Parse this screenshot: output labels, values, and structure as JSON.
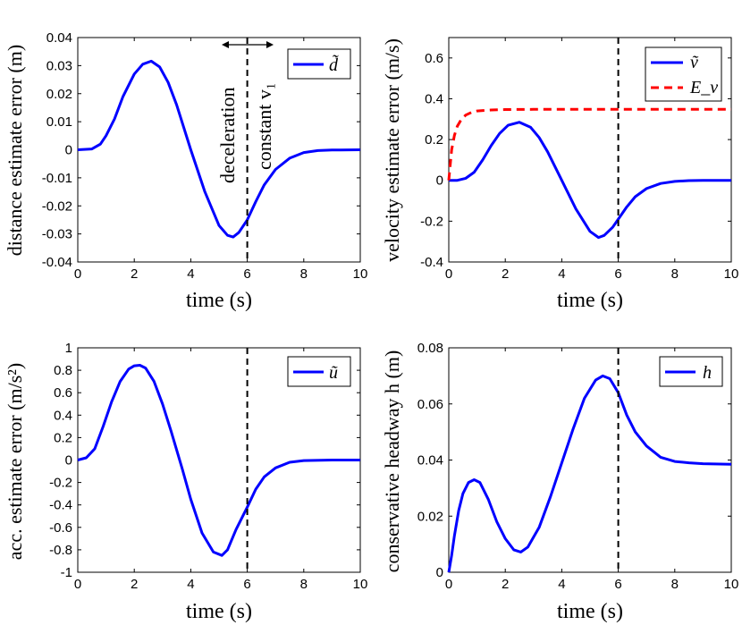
{
  "chart_data": [
    {
      "id": "p1",
      "type": "line",
      "xlabel": "time (s)",
      "ylabel": "distance estimate error (m)",
      "xlim": [
        0,
        10
      ],
      "ylim": [
        -0.04,
        0.04
      ],
      "xticks": [
        "0",
        "2",
        "4",
        "6",
        "8",
        "10"
      ],
      "yticks": [
        "-0.04",
        "-0.03",
        "-0.02",
        "-0.01",
        "0",
        "0.01",
        "0.02",
        "0.03",
        "0.04"
      ],
      "vline": 6,
      "legend": {
        "position": "top-right",
        "entries": [
          "d̃"
        ]
      },
      "annotations": {
        "left": "deceleration",
        "right": "constant v₁"
      },
      "series": [
        {
          "name": "d̃",
          "color": "#0000ff",
          "style": "solid",
          "x": [
            0,
            0.5,
            0.8,
            1.0,
            1.3,
            1.6,
            2.0,
            2.3,
            2.6,
            2.9,
            3.2,
            3.5,
            4.0,
            4.5,
            5.0,
            5.3,
            5.5,
            5.7,
            6.0,
            6.3,
            6.6,
            7.0,
            7.5,
            8.0,
            8.5,
            9.0,
            10.0
          ],
          "y": [
            0,
            0.0003,
            0.002,
            0.005,
            0.011,
            0.019,
            0.027,
            0.0305,
            0.0316,
            0.0295,
            0.024,
            0.016,
            0.0,
            -0.015,
            -0.027,
            -0.0305,
            -0.0311,
            -0.0295,
            -0.025,
            -0.0185,
            -0.0125,
            -0.007,
            -0.003,
            -0.001,
            -0.0003,
            -0.0001,
            0
          ]
        }
      ]
    },
    {
      "id": "p2",
      "type": "line",
      "xlabel": "time (s)",
      "ylabel": "velocity estimate error (m/s)",
      "xlim": [
        0,
        10
      ],
      "ylim": [
        -0.4,
        0.7
      ],
      "xticks": [
        "0",
        "2",
        "4",
        "6",
        "8",
        "10"
      ],
      "yticks": [
        "-0.4",
        "-0.2",
        "0",
        "0.2",
        "0.4",
        "0.6"
      ],
      "yticksv": [
        -0.4,
        -0.2,
        0,
        0.2,
        0.4,
        0.6
      ],
      "vline": 6,
      "legend": {
        "position": "top-right",
        "entries": [
          "ṽ",
          "E_v"
        ]
      },
      "series": [
        {
          "name": "ṽ",
          "color": "#0000ff",
          "style": "solid",
          "x": [
            0,
            0.3,
            0.6,
            0.9,
            1.2,
            1.5,
            1.8,
            2.1,
            2.5,
            2.9,
            3.2,
            3.5,
            4.0,
            4.5,
            5.0,
            5.3,
            5.5,
            5.8,
            6.0,
            6.3,
            6.6,
            7.0,
            7.5,
            8.0,
            8.5,
            9.0,
            10.0
          ],
          "y": [
            0,
            0.0,
            0.01,
            0.04,
            0.1,
            0.17,
            0.23,
            0.27,
            0.285,
            0.26,
            0.21,
            0.14,
            0.0,
            -0.14,
            -0.25,
            -0.28,
            -0.27,
            -0.23,
            -0.19,
            -0.13,
            -0.08,
            -0.04,
            -0.015,
            -0.005,
            -0.001,
            0,
            0
          ]
        },
        {
          "name": "E_v",
          "color": "#ff0000",
          "style": "dashed",
          "x": [
            0,
            0.1,
            0.2,
            0.3,
            0.45,
            0.6,
            0.8,
            1.0,
            1.5,
            2.0,
            3.0,
            5.0,
            7.0,
            10.0
          ],
          "y": [
            0,
            0.15,
            0.22,
            0.265,
            0.3,
            0.32,
            0.333,
            0.34,
            0.345,
            0.347,
            0.348,
            0.348,
            0.348,
            0.348
          ]
        }
      ]
    },
    {
      "id": "p3",
      "type": "line",
      "xlabel": "time (s)",
      "ylabel": "acc. estimate error (m/s²)",
      "xlim": [
        0,
        10
      ],
      "ylim": [
        -1,
        1
      ],
      "xticks": [
        "0",
        "2",
        "4",
        "6",
        "8",
        "10"
      ],
      "yticks": [
        "-1",
        "-0.8",
        "-0.6",
        "-0.4",
        "-0.2",
        "0",
        "0.2",
        "0.4",
        "0.6",
        "0.8",
        "1"
      ],
      "vline": 6,
      "legend": {
        "position": "top-right",
        "entries": [
          "ũ"
        ]
      },
      "series": [
        {
          "name": "ũ",
          "color": "#0000ff",
          "style": "solid",
          "x": [
            0,
            0.3,
            0.6,
            0.9,
            1.2,
            1.5,
            1.8,
            2.0,
            2.2,
            2.4,
            2.7,
            3.0,
            3.3,
            3.7,
            4.0,
            4.4,
            4.8,
            5.1,
            5.3,
            5.6,
            6.0,
            6.3,
            6.6,
            7.0,
            7.5,
            8.0,
            9.0,
            10.0
          ],
          "y": [
            0,
            0.02,
            0.1,
            0.3,
            0.52,
            0.7,
            0.81,
            0.84,
            0.845,
            0.82,
            0.7,
            0.5,
            0.26,
            -0.08,
            -0.35,
            -0.65,
            -0.82,
            -0.85,
            -0.8,
            -0.62,
            -0.42,
            -0.26,
            -0.15,
            -0.07,
            -0.02,
            -0.005,
            0,
            0
          ]
        }
      ]
    },
    {
      "id": "p4",
      "type": "line",
      "xlabel": "time (s)",
      "ylabel": "conservative headway h (m)",
      "xlim": [
        0,
        10
      ],
      "ylim": [
        0,
        0.08
      ],
      "xticks": [
        "0",
        "2",
        "4",
        "6",
        "8",
        "10"
      ],
      "yticks": [
        "0",
        "0.02",
        "0.04",
        "0.06",
        "0.08"
      ],
      "yticksv": [
        0,
        0.02,
        0.04,
        0.06,
        0.08
      ],
      "vline": 6,
      "legend": {
        "position": "top-right",
        "entries": [
          "h"
        ]
      },
      "series": [
        {
          "name": "h",
          "color": "#0000ff",
          "style": "solid",
          "x": [
            0,
            0.1,
            0.2,
            0.35,
            0.5,
            0.7,
            0.9,
            1.1,
            1.4,
            1.7,
            2.0,
            2.3,
            2.55,
            2.8,
            3.2,
            3.6,
            4.0,
            4.4,
            4.8,
            5.2,
            5.45,
            5.7,
            6.0,
            6.3,
            6.6,
            7.0,
            7.5,
            8.0,
            8.5,
            9.0,
            10.0
          ],
          "y": [
            0,
            0.006,
            0.013,
            0.022,
            0.028,
            0.032,
            0.033,
            0.032,
            0.026,
            0.018,
            0.012,
            0.008,
            0.0072,
            0.009,
            0.016,
            0.027,
            0.039,
            0.051,
            0.062,
            0.0685,
            0.07,
            0.069,
            0.064,
            0.056,
            0.05,
            0.045,
            0.041,
            0.0395,
            0.039,
            0.0387,
            0.0385
          ]
        }
      ]
    }
  ]
}
